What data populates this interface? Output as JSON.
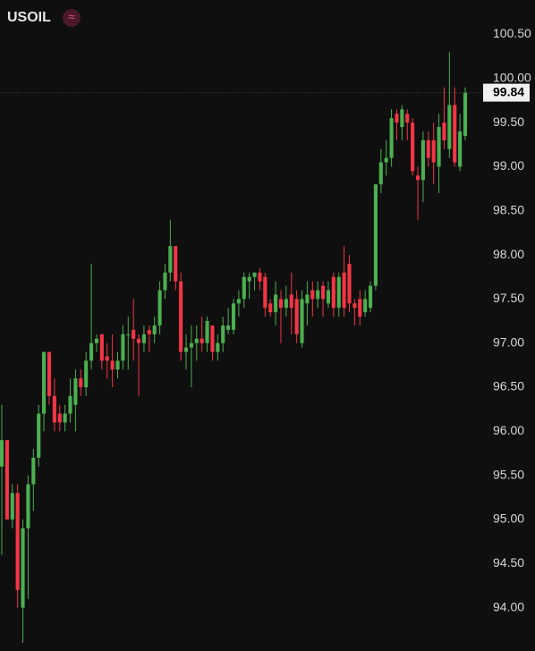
{
  "chart_data": {
    "type": "candlestick",
    "title": "USOIL",
    "badge": "≈",
    "up_color": "#4caf50",
    "down_color": "#f23645",
    "grid": false,
    "last_price": 99.84,
    "ylim": [
      93.6,
      100.85
    ],
    "yticks": [
      {
        "value": 100.5,
        "label": "100.50"
      },
      {
        "value": 100,
        "label": "100.00"
      },
      {
        "value": 99.5,
        "label": "99.50"
      },
      {
        "value": 99,
        "label": "99.00"
      },
      {
        "value": 98.5,
        "label": "98.50"
      },
      {
        "value": 98,
        "label": "98.00"
      },
      {
        "value": 97.5,
        "label": "97.50"
      },
      {
        "value": 97,
        "label": "97.00"
      },
      {
        "value": 96.5,
        "label": "96.50"
      },
      {
        "value": 96,
        "label": "96.00"
      },
      {
        "value": 95.5,
        "label": "95.50"
      },
      {
        "value": 95,
        "label": "95.00"
      },
      {
        "value": 94.5,
        "label": "94.50"
      },
      {
        "value": 94,
        "label": "94.00"
      }
    ],
    "open": [
      95.6,
      95.9,
      95.0,
      95.3,
      94.0,
      94.9,
      95.4,
      95.7,
      96.2,
      96.9,
      96.4,
      96.2,
      96.1,
      96.2,
      96.3,
      96.6,
      96.5,
      96.8,
      97.0,
      97.1,
      96.85,
      96.8,
      96.7,
      96.8,
      97.1,
      97.15,
      97.05,
      97.0,
      97.15,
      97.1,
      97.2,
      97.6,
      97.8,
      98.1,
      97.7,
      96.9,
      96.95,
      97.0,
      97.05,
      97.0,
      97.2,
      96.9,
      97.0,
      97.15,
      97.15,
      97.45,
      97.5,
      97.7,
      97.75,
      97.8,
      97.75,
      97.45,
      97.35,
      97.5,
      97.4,
      97.55,
      97.5,
      97.0,
      97.45,
      97.6,
      97.5,
      97.65,
      97.45,
      97.75,
      97.4,
      97.8,
      97.9,
      97.45,
      97.5,
      97.35,
      97.4,
      97.65,
      98.8,
      99.05,
      99.1,
      99.6,
      99.45,
      99.6,
      99.5,
      98.9,
      98.85,
      99.3,
      99.3,
      99.0,
      99.5,
      99.2,
      99.7,
      99.0,
      99.35
    ],
    "high": [
      96.3,
      95.9,
      95.4,
      95.4,
      95.0,
      95.5,
      95.8,
      96.3,
      96.9,
      96.9,
      96.6,
      96.3,
      96.3,
      96.6,
      96.7,
      96.7,
      96.9,
      97.9,
      97.1,
      97.1,
      97.0,
      97.1,
      96.9,
      97.2,
      97.3,
      97.5,
      97.1,
      97.2,
      97.2,
      97.3,
      97.7,
      97.9,
      98.4,
      98.1,
      97.8,
      97.1,
      97.2,
      97.2,
      97.3,
      97.3,
      97.2,
      97.1,
      97.3,
      97.4,
      97.5,
      97.6,
      97.8,
      97.8,
      97.8,
      97.85,
      97.8,
      97.5,
      97.7,
      97.6,
      97.65,
      97.8,
      97.6,
      97.6,
      97.7,
      97.7,
      97.7,
      97.7,
      97.7,
      97.8,
      97.8,
      98.1,
      98.0,
      97.5,
      97.6,
      97.6,
      97.7,
      98.8,
      99.2,
      99.3,
      99.65,
      99.65,
      99.7,
      99.65,
      99.55,
      99.0,
      99.4,
      99.4,
      99.5,
      99.6,
      99.9,
      100.3,
      99.9,
      99.6,
      99.9
    ],
    "low": [
      94.6,
      95.0,
      94.9,
      94.0,
      93.6,
      94.1,
      95.1,
      95.6,
      96.0,
      96.3,
      96.0,
      96.0,
      96.0,
      96.1,
      96.0,
      96.4,
      96.4,
      96.7,
      96.9,
      96.7,
      96.6,
      96.5,
      96.6,
      96.7,
      96.7,
      96.8,
      96.4,
      96.9,
      96.9,
      97.0,
      97.1,
      97.5,
      97.7,
      97.6,
      96.8,
      96.7,
      96.5,
      96.8,
      96.9,
      96.9,
      96.8,
      96.8,
      96.9,
      97.1,
      97.1,
      97.3,
      97.4,
      97.5,
      97.6,
      97.6,
      97.3,
      97.3,
      97.2,
      97.0,
      97.3,
      97.1,
      97.0,
      96.95,
      97.2,
      97.3,
      97.4,
      97.3,
      97.4,
      97.3,
      97.3,
      97.3,
      97.35,
      97.2,
      97.2,
      97.3,
      97.35,
      97.6,
      98.7,
      98.9,
      99.0,
      99.3,
      99.3,
      99.3,
      98.9,
      98.4,
      98.6,
      99.0,
      98.8,
      98.7,
      99.2,
      99.1,
      99.0,
      98.95,
      99.3
    ],
    "close": [
      95.9,
      95.0,
      95.3,
      94.2,
      94.9,
      95.4,
      95.7,
      96.2,
      96.9,
      96.4,
      96.1,
      96.1,
      96.2,
      96.4,
      96.6,
      96.5,
      96.8,
      97.0,
      97.05,
      96.8,
      96.8,
      96.7,
      96.8,
      97.1,
      97.1,
      97.05,
      97.0,
      97.1,
      97.1,
      97.2,
      97.6,
      97.8,
      98.1,
      97.7,
      96.9,
      96.95,
      97.0,
      97.05,
      97.0,
      97.25,
      96.9,
      97.0,
      97.2,
      97.2,
      97.45,
      97.5,
      97.75,
      97.75,
      97.8,
      97.7,
      97.4,
      97.35,
      97.55,
      97.4,
      97.5,
      97.4,
      97.1,
      97.5,
      97.55,
      97.5,
      97.6,
      97.5,
      97.6,
      97.4,
      97.75,
      97.4,
      97.45,
      97.4,
      97.3,
      97.5,
      97.65,
      98.8,
      99.05,
      99.1,
      99.55,
      99.5,
      99.65,
      99.5,
      98.95,
      98.85,
      99.3,
      99.1,
      99.05,
      99.45,
      99.3,
      99.7,
      99.05,
      99.4,
      99.84
    ]
  }
}
